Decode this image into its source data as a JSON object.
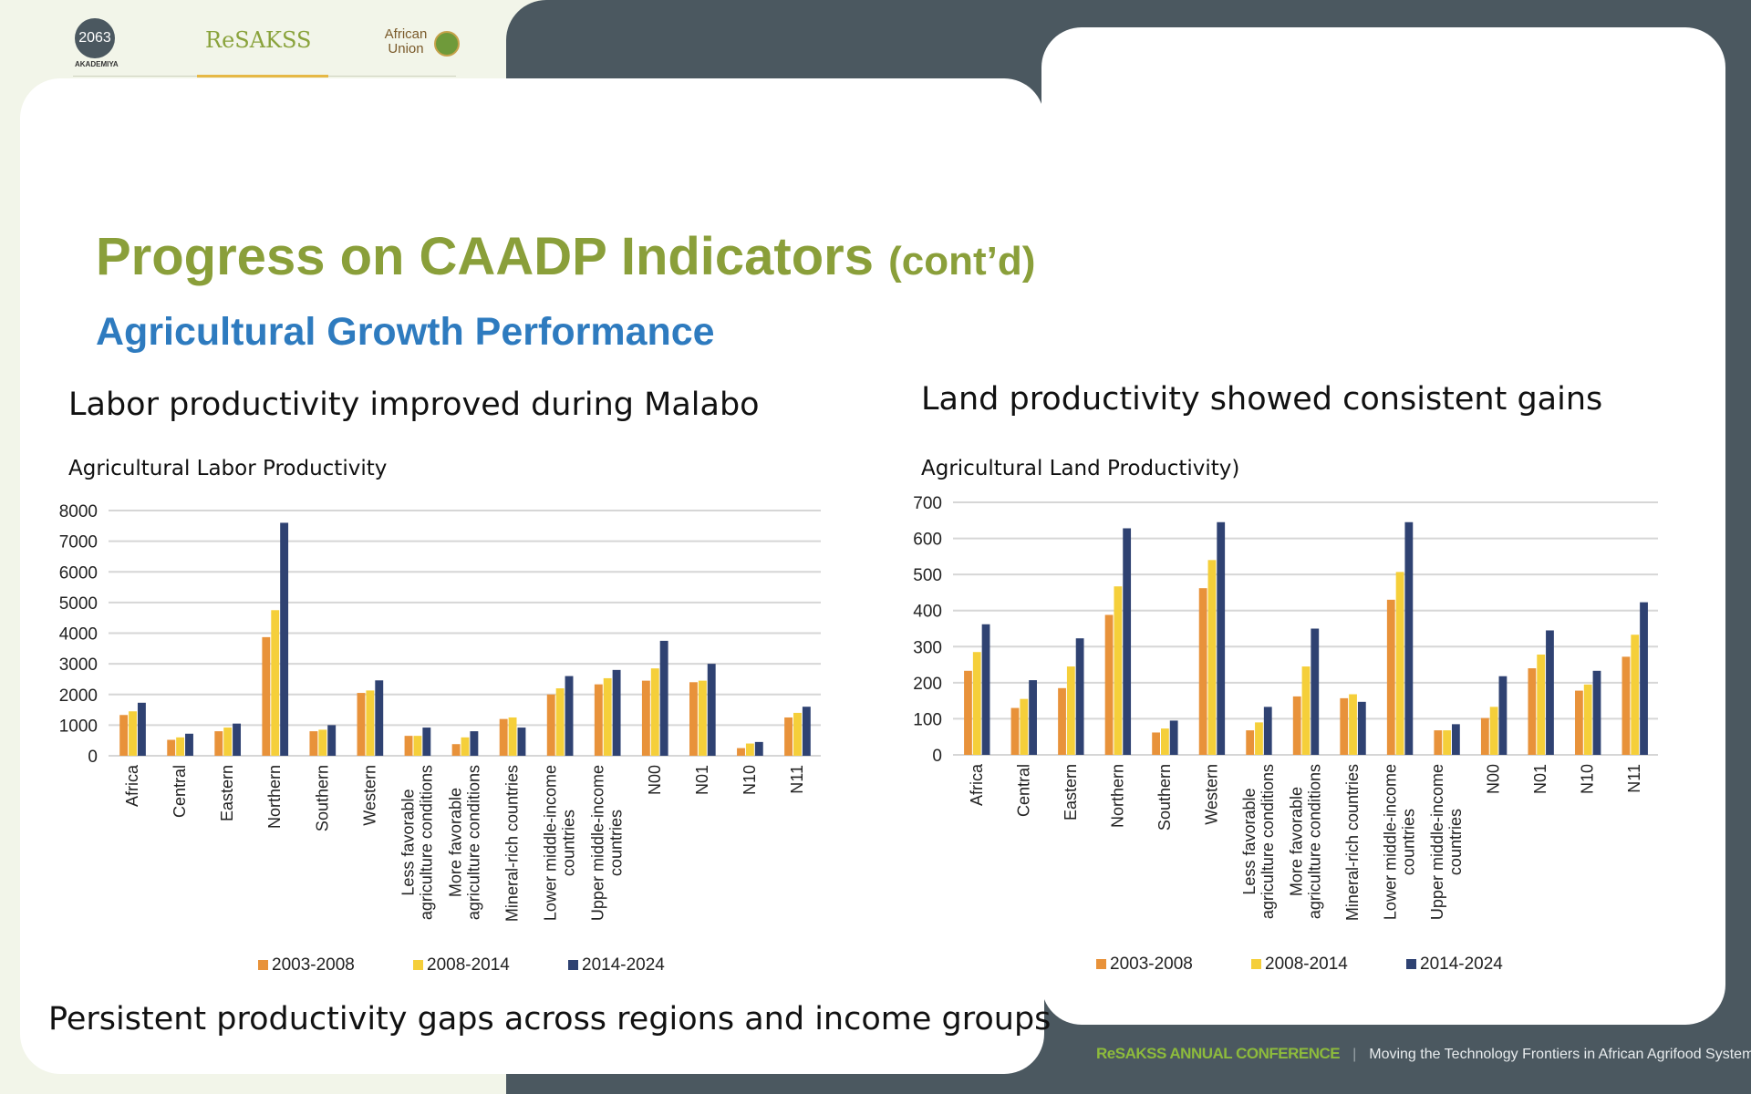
{
  "logos": {
    "akademiya": "2063",
    "akademiya_caption": "AKADEMIYA",
    "resakss": "ReSAKSS",
    "african_union": "African Union"
  },
  "slide": {
    "title": "Progress on CAADP Indicators",
    "title_suffix": "(cont’d)",
    "subtitle": "Agricultural Growth Performance",
    "left_heading": "Labor productivity improved during Malabo",
    "right_heading": "Land productivity showed consistent gains",
    "bottom_text": "Persistent productivity gaps across regions and income groups"
  },
  "footer": {
    "conference": "ReSAKSS ANNUAL CONFERENCE",
    "separator": "|",
    "tagline": "Moving the Technology Frontiers in African Agrifood Systems"
  },
  "colors": {
    "accent_green": "#8a9f3a",
    "subtitle_blue": "#2e7bbf",
    "dark_panel": "#4b5860",
    "series": [
      "#e8923a",
      "#f5cf3a",
      "#2f4272"
    ]
  },
  "chart_data": [
    {
      "type": "bar",
      "title": "Agricultural Labor Productivity",
      "categories": [
        "Africa",
        "Central",
        "Eastern",
        "Northern",
        "Southern",
        "Western",
        "Less favorable\nagriculture conditions",
        "More favorable\nagriculture conditions",
        "Mineral-rich countries",
        "Lower middle-income\ncountries",
        "Upper middle-income\ncountries",
        "N00",
        "N01",
        "N10",
        "N11"
      ],
      "ylim": [
        0,
        8000
      ],
      "yticks": [
        0,
        1000,
        2000,
        3000,
        4000,
        5000,
        6000,
        7000,
        8000
      ],
      "grid": true,
      "legend": "bottom",
      "series": [
        {
          "name": "2003-2008",
          "values": [
            1330,
            520,
            800,
            3870,
            800,
            2050,
            650,
            380,
            1200,
            2000,
            2330,
            2450,
            2400,
            250,
            1250
          ]
        },
        {
          "name": "2008-2014",
          "values": [
            1450,
            600,
            920,
            4750,
            850,
            2130,
            650,
            600,
            1250,
            2200,
            2530,
            2850,
            2450,
            400,
            1400
          ]
        },
        {
          "name": "2014-2024",
          "values": [
            1730,
            720,
            1050,
            7600,
            1000,
            2460,
            920,
            800,
            920,
            2600,
            2800,
            3750,
            3000,
            450,
            1600
          ]
        }
      ]
    },
    {
      "type": "bar",
      "title": "Agricultural Land Productivity)",
      "categories": [
        "Africa",
        "Central",
        "Eastern",
        "Northern",
        "Southern",
        "Western",
        "Less favorable\nagriculture conditions",
        "More favorable\nagriculture conditions",
        "Mineral-rich countries",
        "Lower middle-income\ncountries",
        "Upper middle-income\ncountries",
        "N00",
        "N01",
        "N10",
        "N11"
      ],
      "ylim": [
        0,
        700
      ],
      "yticks": [
        0,
        100,
        200,
        300,
        400,
        500,
        600,
        700
      ],
      "grid": true,
      "legend": "bottom",
      "series": [
        {
          "name": "2003-2008",
          "values": [
            233,
            130,
            185,
            388,
            62,
            462,
            68,
            162,
            157,
            430,
            68,
            102,
            240,
            178,
            272
          ]
        },
        {
          "name": "2008-2014",
          "values": [
            285,
            155,
            245,
            467,
            73,
            540,
            90,
            245,
            168,
            507,
            68,
            133,
            278,
            195,
            333
          ]
        },
        {
          "name": "2014-2024",
          "values": [
            362,
            207,
            323,
            628,
            95,
            645,
            133,
            350,
            147,
            645,
            85,
            218,
            345,
            233,
            423
          ]
        }
      ]
    }
  ]
}
